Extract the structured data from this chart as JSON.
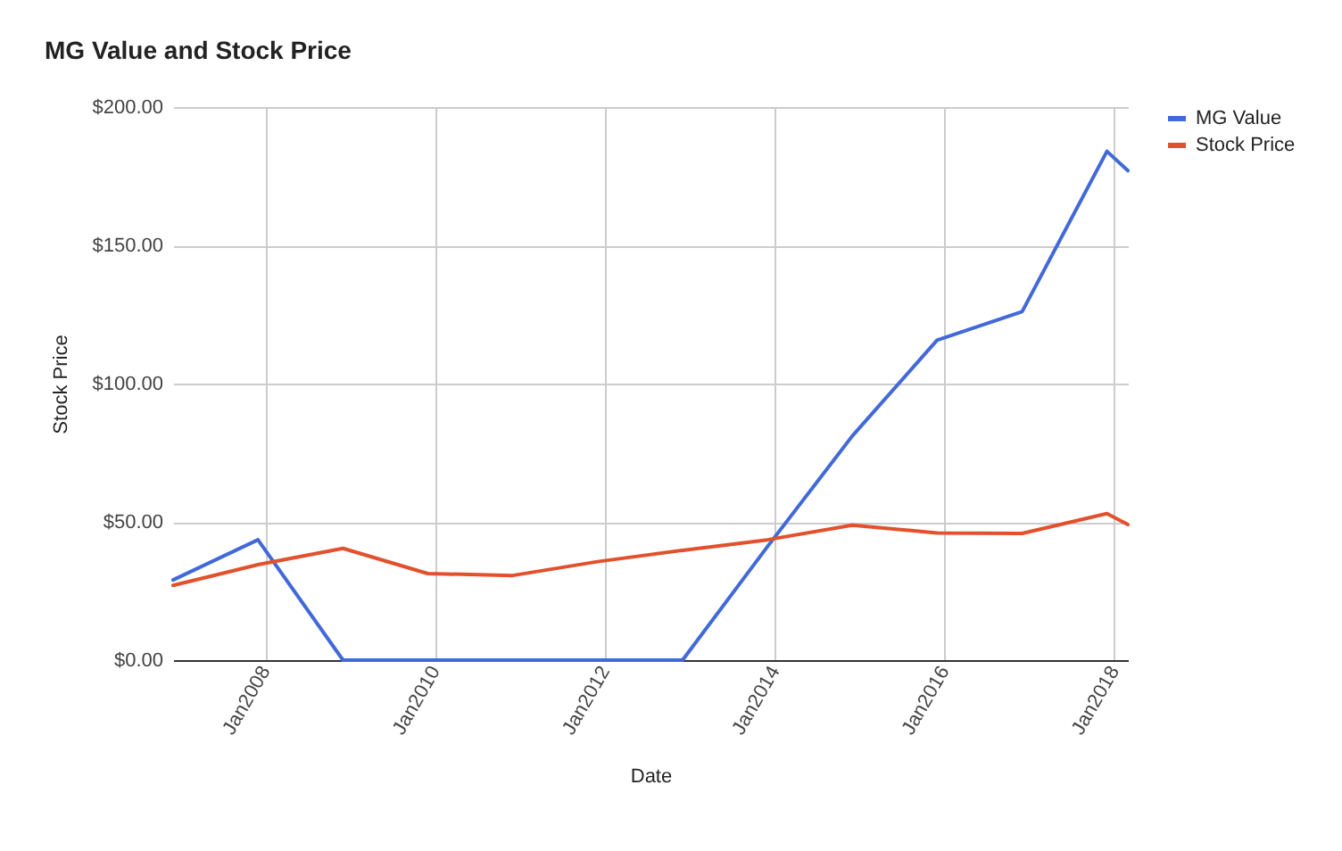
{
  "chart_data": {
    "type": "line",
    "title": "MG Value and Stock Price",
    "xlabel": "Date",
    "ylabel": "Stock Price",
    "x": [
      "2006-12",
      "2007-12",
      "2008-12",
      "2009-12",
      "2010-12",
      "2011-12",
      "2012-12",
      "2013-12",
      "2014-12",
      "2015-12",
      "2016-12",
      "2017-12",
      "2018-03"
    ],
    "series": [
      {
        "name": "MG Value",
        "color": "#4169d8",
        "values": [
          29,
          43.5,
          0,
          0,
          0,
          0,
          0,
          41,
          81,
          115.7,
          126,
          184,
          177
        ]
      },
      {
        "name": "Stock Price",
        "color": "#e2502c",
        "values": [
          27,
          34.5,
          40.4,
          31.3,
          30.6,
          35.6,
          39.7,
          43.5,
          48.8,
          46,
          45.8,
          53,
          49
        ]
      }
    ],
    "xlim": [
      "2006-12",
      "2018-03"
    ],
    "xticks": [
      {
        "value": "2008-01",
        "label": "Jan2008"
      },
      {
        "value": "2010-01",
        "label": "Jan2010"
      },
      {
        "value": "2012-01",
        "label": "Jan2012"
      },
      {
        "value": "2014-01",
        "label": "Jan2014"
      },
      {
        "value": "2016-01",
        "label": "Jan2016"
      },
      {
        "value": "2018-01",
        "label": "Jan2018"
      }
    ],
    "ylim": [
      0,
      200
    ],
    "yticks": [
      {
        "value": 0,
        "label": "$0.00"
      },
      {
        "value": 50,
        "label": "$50.00"
      },
      {
        "value": 100,
        "label": "$100.00"
      },
      {
        "value": 150,
        "label": "$150.00"
      },
      {
        "value": 200,
        "label": "$200.00"
      }
    ],
    "grid": true,
    "legend": "top right"
  }
}
